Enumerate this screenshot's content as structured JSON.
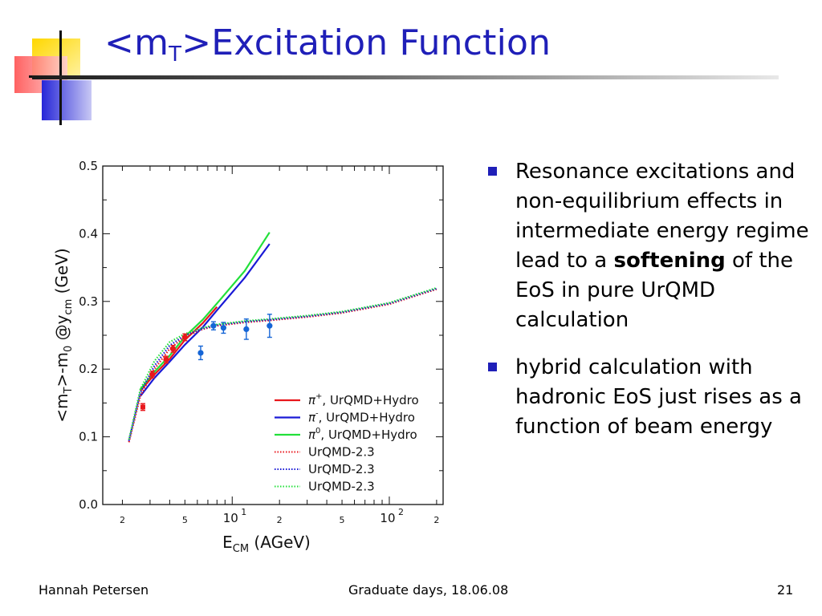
{
  "title": {
    "main": "<m",
    "sub": "T",
    "rest": ">Excitation Function"
  },
  "bullets": [
    {
      "before": "Resonance excitations and non-equilibrium effects in intermediate energy regime lead to a ",
      "bold": "softening",
      "after": " of the EoS in pure UrQMD calculation"
    },
    {
      "before": "hybrid calculation with hadronic EoS just rises as a function of beam energy",
      "bold": "",
      "after": ""
    }
  ],
  "footer": {
    "author": "Hannah Petersen",
    "event": "Graduate days, 18.06.08",
    "page": "21"
  },
  "colors": {
    "title": "#1f1fb8",
    "bullet": "#1f1fb8",
    "red": "#e8171c",
    "blue": "#1a1ad6",
    "green": "#22e03a",
    "data_points": "#1565d6"
  },
  "chart_data": {
    "type": "line",
    "xlabel": "E_CM (AGeV)",
    "ylabel": "<m_T>-m_0 @y_cm (GeV)",
    "xscale": "log",
    "xlim": [
      1.5,
      220
    ],
    "ylim": [
      0.0,
      0.5
    ],
    "yticks": [
      "0.0",
      "0.1",
      "0.2",
      "0.3",
      "0.4",
      "0.5"
    ],
    "xtick_labels": [
      {
        "x": 2,
        "label": "2",
        "kind": "minor"
      },
      {
        "x": 5,
        "label": "5",
        "kind": "minor"
      },
      {
        "x": 10,
        "label": "10",
        "sup": "1",
        "kind": "major"
      },
      {
        "x": 20,
        "label": "2",
        "kind": "minor"
      },
      {
        "x": 50,
        "label": "5",
        "kind": "minor"
      },
      {
        "x": 100,
        "label": "10",
        "sup": "2",
        "kind": "major"
      },
      {
        "x": 200,
        "label": "2",
        "kind": "minor"
      }
    ],
    "legend_position": "bottom-right",
    "series": [
      {
        "name": "π⁺, UrQMD+Hydro",
        "legend": {
          "sym": "π",
          "sup": "+",
          "text": ", UrQMD+Hydro"
        },
        "color": "#e8171c",
        "style": "solid",
        "x": [
          2.6,
          3.2,
          4.0,
          5.0,
          6.5,
          8.0
        ],
        "y": [
          0.168,
          0.192,
          0.215,
          0.243,
          0.268,
          0.292
        ]
      },
      {
        "name": "π⁻, UrQMD+Hydro",
        "legend": {
          "sym": "π",
          "sup": "-",
          "text": ", UrQMD+Hydro"
        },
        "color": "#1a1ad6",
        "style": "solid",
        "x": [
          2.6,
          3.2,
          4.0,
          5.0,
          6.5,
          8.0,
          12.0,
          17.3
        ],
        "y": [
          0.16,
          0.187,
          0.211,
          0.236,
          0.262,
          0.287,
          0.335,
          0.385
        ]
      },
      {
        "name": "π⁰, UrQMD+Hydro",
        "legend": {
          "sym": "π",
          "sup": "0",
          "text": ", UrQMD+Hydro"
        },
        "color": "#22e03a",
        "style": "solid",
        "x": [
          2.6,
          3.2,
          4.0,
          5.0,
          6.5,
          8.0,
          12.0,
          17.3
        ],
        "y": [
          0.17,
          0.196,
          0.22,
          0.248,
          0.273,
          0.297,
          0.345,
          0.402
        ]
      },
      {
        "name": "UrQMD-2.3",
        "legend": {
          "sym": "",
          "sup": "",
          "text": "UrQMD-2.3"
        },
        "color": "#e8171c",
        "style": "dotted",
        "x": [
          2.2,
          2.6,
          3.2,
          4.0,
          5.0,
          6.5,
          8.0,
          12.0,
          17.3,
          30,
          50,
          100,
          200
        ],
        "y": [
          0.092,
          0.16,
          0.2,
          0.23,
          0.248,
          0.259,
          0.264,
          0.269,
          0.272,
          0.277,
          0.283,
          0.296,
          0.318
        ]
      },
      {
        "name": "UrQMD-2.3",
        "legend": {
          "sym": "",
          "sup": "",
          "text": "UrQMD-2.3"
        },
        "color": "#1a1ad6",
        "style": "dotted",
        "x": [
          2.2,
          2.6,
          3.2,
          4.0,
          5.0,
          6.5,
          8.0,
          12.0,
          17.3,
          30,
          50,
          100,
          200
        ],
        "y": [
          0.094,
          0.165,
          0.205,
          0.235,
          0.25,
          0.26,
          0.265,
          0.27,
          0.273,
          0.278,
          0.284,
          0.297,
          0.319
        ]
      },
      {
        "name": "UrQMD-2.3",
        "legend": {
          "sym": "",
          "sup": "",
          "text": "UrQMD-2.3"
        },
        "color": "#22e03a",
        "style": "dotted",
        "x": [
          2.2,
          2.6,
          3.2,
          4.0,
          5.0,
          6.5,
          8.0,
          12.0,
          17.3,
          30,
          50,
          100,
          200
        ],
        "y": [
          0.096,
          0.17,
          0.212,
          0.24,
          0.252,
          0.261,
          0.266,
          0.271,
          0.274,
          0.279,
          0.285,
          0.298,
          0.32
        ]
      }
    ],
    "data_points": {
      "red": [
        {
          "x": 2.7,
          "y": 0.144,
          "err": 0.005
        }
      ],
      "blue": [
        {
          "x": 6.3,
          "y": 0.224,
          "err": 0.01
        },
        {
          "x": 7.6,
          "y": 0.264,
          "err": 0.006
        },
        {
          "x": 8.8,
          "y": 0.261,
          "err": 0.008
        },
        {
          "x": 12.3,
          "y": 0.259,
          "err": 0.015
        },
        {
          "x": 17.3,
          "y": 0.264,
          "err": 0.017
        }
      ],
      "red_model": [
        {
          "x": 3.1,
          "y": 0.192,
          "err": 0.005
        },
        {
          "x": 3.8,
          "y": 0.214,
          "err": 0.005
        },
        {
          "x": 4.2,
          "y": 0.23,
          "err": 0.005
        },
        {
          "x": 5.0,
          "y": 0.247,
          "err": 0.005
        }
      ]
    }
  }
}
